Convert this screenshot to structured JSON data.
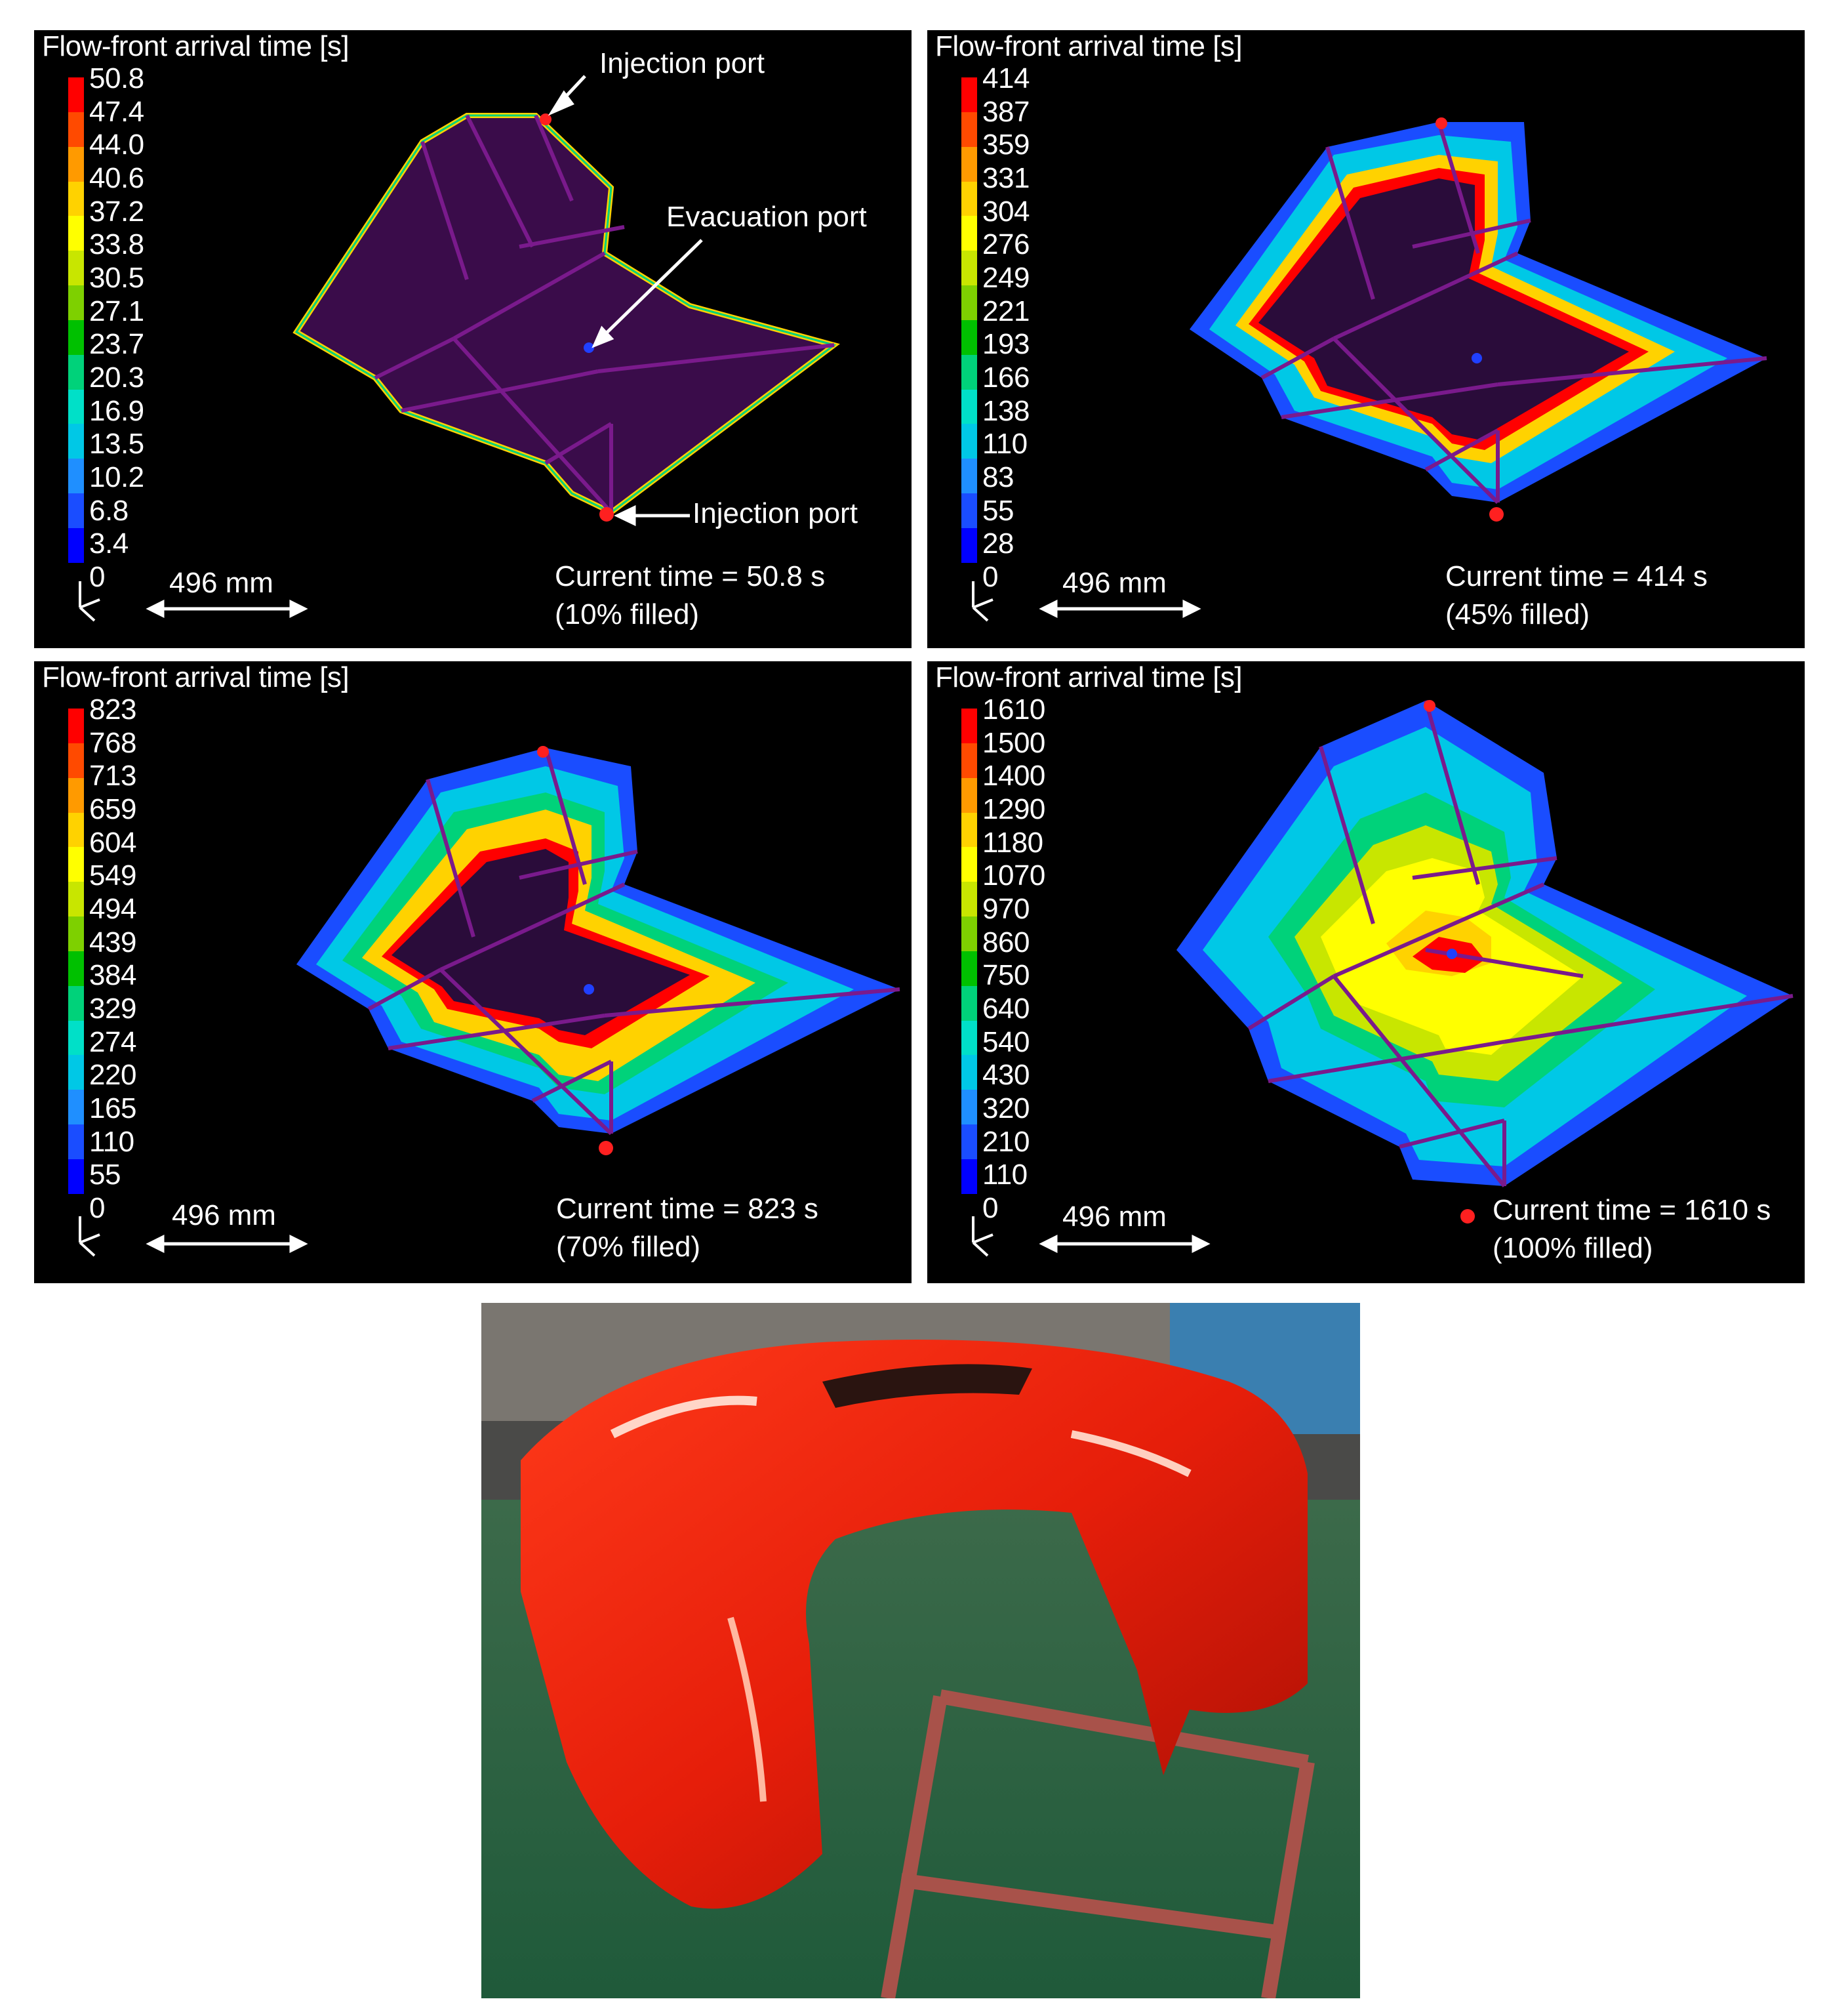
{
  "colors": {
    "scale": [
      "#0000ff",
      "#1a4dff",
      "#1f8fff",
      "#00c8e6",
      "#00e0c8",
      "#00d27a",
      "#00c000",
      "#7ed000",
      "#c8e600",
      "#ffff00",
      "#ffd200",
      "#ff9a00",
      "#ff4a00",
      "#ff0000"
    ],
    "mesh": "#7a1a8c",
    "port": "#ff2020",
    "vent": "#2040ff"
  },
  "panels": [
    {
      "legend_title": "Flow-front arrival time [s]",
      "ticks": [
        "50.8",
        "47.4",
        "44.0",
        "40.6",
        "37.2",
        "33.8",
        "30.5",
        "27.1",
        "23.7",
        "20.3",
        "16.9",
        "13.5",
        "10.2",
        "6.8",
        "3.4",
        "0"
      ],
      "scale_label": "496 mm",
      "time_line1": "Current time = 50.8 s",
      "time_line2": "(10% filled)",
      "fill_fraction": 0.1,
      "annotations": {
        "injection_top": "Injection port",
        "evacuation": "Evacuation port",
        "injection_bottom": "Injection port"
      }
    },
    {
      "legend_title": "Flow-front arrival time [s]",
      "ticks": [
        "414",
        "387",
        "359",
        "331",
        "304",
        "276",
        "249",
        "221",
        "193",
        "166",
        "138",
        "110",
        "83",
        "55",
        "28",
        "0"
      ],
      "scale_label": "496 mm",
      "time_line1": "Current time = 414 s",
      "time_line2": "(45% filled)",
      "fill_fraction": 0.45
    },
    {
      "legend_title": "Flow-front arrival time [s]",
      "ticks": [
        "823",
        "768",
        "713",
        "659",
        "604",
        "549",
        "494",
        "439",
        "384",
        "329",
        "274",
        "220",
        "165",
        "110",
        "55",
        "0"
      ],
      "scale_label": "496 mm",
      "time_line1": "Current time = 823 s",
      "time_line2": "(70% filled)",
      "fill_fraction": 0.7
    },
    {
      "legend_title": "Flow-front arrival time [s]",
      "ticks": [
        "1610",
        "1500",
        "1400",
        "1290",
        "1180",
        "1070",
        "970",
        "860",
        "750",
        "640",
        "540",
        "430",
        "320",
        "210",
        "110",
        "0"
      ],
      "scale_label": "496 mm",
      "time_line1": "Current time = 1610 s",
      "time_line2": "(100% filled)",
      "fill_fraction": 1.0
    }
  ]
}
